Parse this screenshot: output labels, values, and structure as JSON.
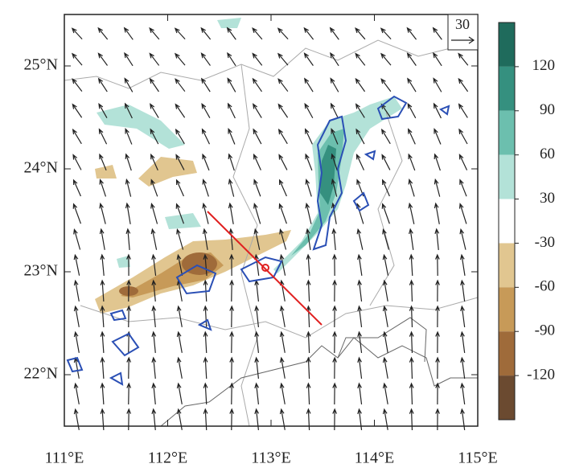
{
  "map": {
    "xlim": [
      111,
      115
    ],
    "ylim": [
      21.5,
      25.5
    ],
    "x_ticks": [
      {
        "value": 111,
        "label": "111°E"
      },
      {
        "value": 112,
        "label": "112°E"
      },
      {
        "value": 113,
        "label": "113°E"
      },
      {
        "value": 114,
        "label": "114°E"
      },
      {
        "value": 115,
        "label": "115°E"
      }
    ],
    "y_ticks": [
      {
        "value": 22,
        "label": "22°N"
      },
      {
        "value": 23,
        "label": "23°N"
      },
      {
        "value": 24,
        "label": "24°N"
      },
      {
        "value": 25,
        "label": "25°N"
      }
    ],
    "reference_vector": "30",
    "colorbar": {
      "levels": [
        120,
        90,
        60,
        30,
        -30,
        -60,
        -90,
        -120
      ],
      "colors": [
        "#1f6b5c",
        "#35907f",
        "#6cbfae",
        "#b3e2d8",
        "#ffffff",
        "#e1c690",
        "#c79a58",
        "#9f6b3a",
        "#6b4a30"
      ]
    }
  }
}
